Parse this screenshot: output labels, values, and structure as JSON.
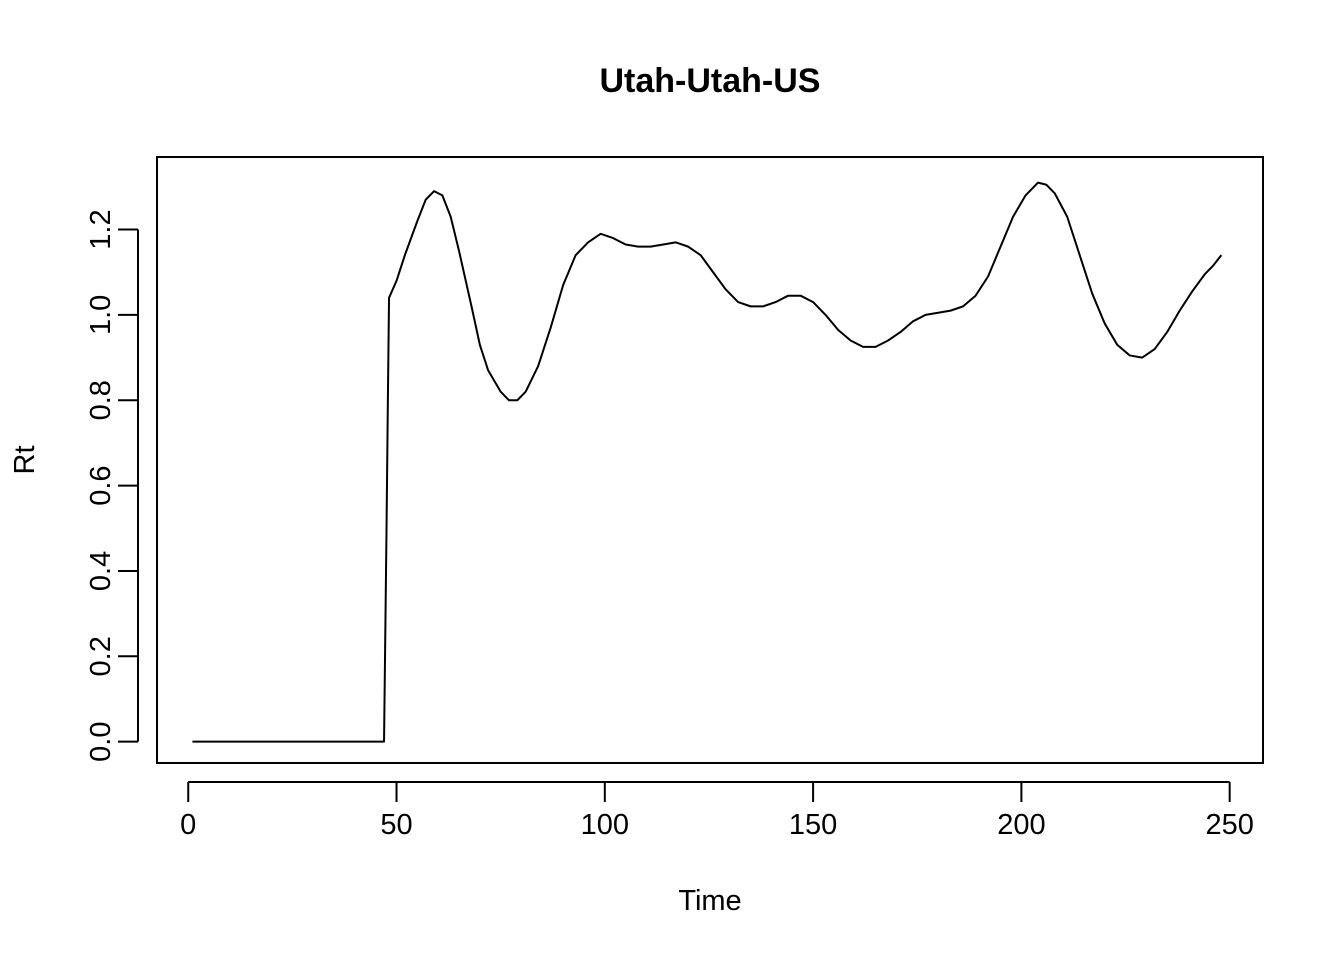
{
  "chart_data": {
    "type": "line",
    "title": "Utah-Utah-US",
    "xlabel": "Time",
    "ylabel": "Rt",
    "xlim": [
      -7.5,
      258
    ],
    "ylim": [
      -0.05,
      1.37
    ],
    "x_ticks": [
      0,
      50,
      100,
      150,
      200,
      250
    ],
    "y_ticks": [
      0.0,
      0.2,
      0.4,
      0.6,
      0.8,
      1.0,
      1.2
    ],
    "x_tick_labels": [
      "0",
      "50",
      "100",
      "150",
      "200",
      "250"
    ],
    "y_tick_labels": [
      "0.0",
      "0.2",
      "0.4",
      "0.6",
      "0.8",
      "1.0",
      "1.2"
    ],
    "grid": false,
    "legend": "none",
    "series": [
      {
        "color": "#000000",
        "points": [
          [
            1,
            0
          ],
          [
            10,
            0
          ],
          [
            20,
            0
          ],
          [
            30,
            0
          ],
          [
            40,
            0
          ],
          [
            47,
            0
          ],
          [
            47.3,
            0.25
          ],
          [
            47.6,
            0.5
          ],
          [
            47.9,
            0.78
          ],
          [
            48.2,
            1.04
          ],
          [
            50,
            1.08
          ],
          [
            52,
            1.14
          ],
          [
            55,
            1.22
          ],
          [
            57,
            1.27
          ],
          [
            59,
            1.29
          ],
          [
            61,
            1.28
          ],
          [
            63,
            1.23
          ],
          [
            65,
            1.15
          ],
          [
            68,
            1.02
          ],
          [
            70,
            0.93
          ],
          [
            72,
            0.87
          ],
          [
            75,
            0.82
          ],
          [
            77,
            0.8
          ],
          [
            79,
            0.8
          ],
          [
            81,
            0.82
          ],
          [
            84,
            0.88
          ],
          [
            87,
            0.97
          ],
          [
            90,
            1.07
          ],
          [
            93,
            1.14
          ],
          [
            96,
            1.17
          ],
          [
            99,
            1.19
          ],
          [
            102,
            1.18
          ],
          [
            105,
            1.165
          ],
          [
            108,
            1.16
          ],
          [
            111,
            1.16
          ],
          [
            114,
            1.165
          ],
          [
            117,
            1.17
          ],
          [
            120,
            1.16
          ],
          [
            123,
            1.14
          ],
          [
            126,
            1.1
          ],
          [
            129,
            1.06
          ],
          [
            132,
            1.03
          ],
          [
            135,
            1.02
          ],
          [
            138,
            1.02
          ],
          [
            141,
            1.03
          ],
          [
            144,
            1.045
          ],
          [
            147,
            1.045
          ],
          [
            150,
            1.03
          ],
          [
            153,
            1.0
          ],
          [
            156,
            0.965
          ],
          [
            159,
            0.94
          ],
          [
            162,
            0.925
          ],
          [
            165,
            0.925
          ],
          [
            168,
            0.94
          ],
          [
            171,
            0.96
          ],
          [
            174,
            0.985
          ],
          [
            177,
            1.0
          ],
          [
            180,
            1.005
          ],
          [
            183,
            1.01
          ],
          [
            186,
            1.02
          ],
          [
            189,
            1.045
          ],
          [
            192,
            1.09
          ],
          [
            195,
            1.16
          ],
          [
            198,
            1.23
          ],
          [
            201,
            1.28
          ],
          [
            204,
            1.31
          ],
          [
            206,
            1.305
          ],
          [
            208,
            1.285
          ],
          [
            211,
            1.23
          ],
          [
            214,
            1.14
          ],
          [
            217,
            1.05
          ],
          [
            220,
            0.98
          ],
          [
            223,
            0.93
          ],
          [
            226,
            0.905
          ],
          [
            229,
            0.9
          ],
          [
            232,
            0.92
          ],
          [
            235,
            0.96
          ],
          [
            238,
            1.01
          ],
          [
            241,
            1.055
          ],
          [
            244,
            1.095
          ],
          [
            246,
            1.115
          ],
          [
            248,
            1.14
          ]
        ]
      }
    ]
  }
}
